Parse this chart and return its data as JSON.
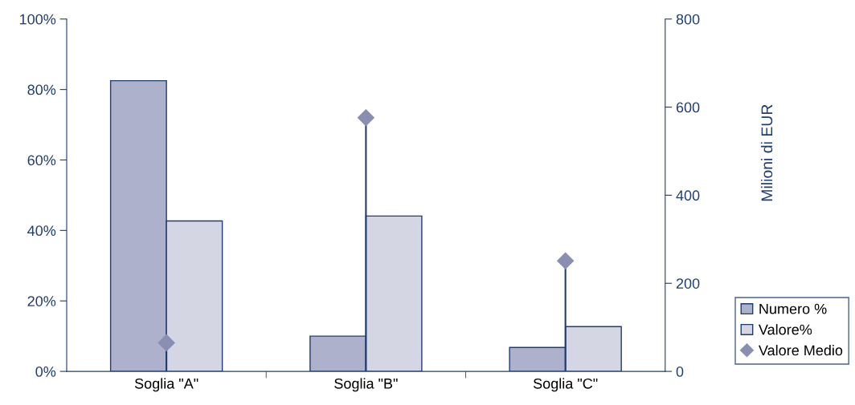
{
  "chart_data": {
    "type": "bar",
    "categories": [
      "Soglia \"A\"",
      "Soglia \"B\"",
      "Soglia \"C\""
    ],
    "y2label": "Milioni di EUR",
    "series": [
      {
        "name": "Numero %",
        "color": "#aeb1cc",
        "values": [
          82.5,
          10,
          6.8
        ]
      },
      {
        "name": "Valore%",
        "color": "#d4d6e3",
        "values": [
          42.7,
          44.1,
          12.7
        ]
      },
      {
        "name": "Valore Medio",
        "color": "#8a8fb2",
        "type": "lollipop",
        "axis": "y2",
        "marker": "diamond",
        "values": [
          65,
          576,
          251
        ]
      }
    ],
    "ylim": [
      0,
      100
    ],
    "yticks": [
      {
        "value": 0,
        "label": "0%"
      },
      {
        "value": 20,
        "label": "20%"
      },
      {
        "value": 40,
        "label": "40%"
      },
      {
        "value": 60,
        "label": "60%"
      },
      {
        "value": 80,
        "label": "80%"
      },
      {
        "value": 100,
        "label": "100%"
      }
    ],
    "y2lim": [
      0,
      800
    ],
    "y2ticks": [
      0,
      200,
      400,
      600,
      800
    ],
    "grid": false,
    "legend": "right"
  }
}
